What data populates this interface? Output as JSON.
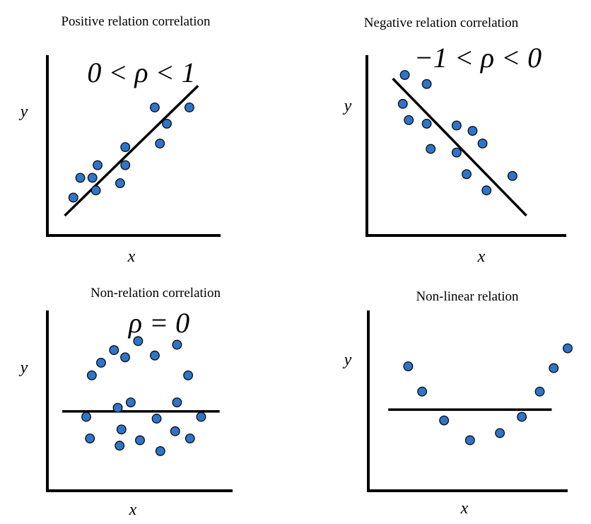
{
  "chart_data": [
    {
      "type": "scatter",
      "title": "Positive relation correlation",
      "annotation": "0 < ρ < 1",
      "xlabel": "x",
      "ylabel": "y",
      "xlim": [
        0,
        10
      ],
      "ylim": [
        0,
        10
      ],
      "trend_line": {
        "x": [
          1,
          8.7
        ],
        "y": [
          1.1,
          8.3
        ]
      },
      "points": [
        {
          "x": 1.5,
          "y": 2.1
        },
        {
          "x": 1.9,
          "y": 3.2
        },
        {
          "x": 2.6,
          "y": 3.2
        },
        {
          "x": 2.8,
          "y": 2.5
        },
        {
          "x": 2.9,
          "y": 3.9
        },
        {
          "x": 4.2,
          "y": 2.9
        },
        {
          "x": 4.5,
          "y": 3.9
        },
        {
          "x": 4.5,
          "y": 4.9
        },
        {
          "x": 6.2,
          "y": 7.1
        },
        {
          "x": 6.5,
          "y": 5.1
        },
        {
          "x": 6.9,
          "y": 6.2
        },
        {
          "x": 8.2,
          "y": 7.1
        }
      ]
    },
    {
      "type": "scatter",
      "title": "Negative relation correlation",
      "annotation": "−1 < ρ < 0",
      "xlabel": "x",
      "ylabel": "y",
      "xlim": [
        0,
        10
      ],
      "ylim": [
        0,
        10
      ],
      "trend_line": {
        "x": [
          1.3,
          8
        ],
        "y": [
          8.7,
          1.1
        ]
      },
      "points": [
        {
          "x": 1.9,
          "y": 8.9
        },
        {
          "x": 1.8,
          "y": 7.3
        },
        {
          "x": 2.1,
          "y": 6.4
        },
        {
          "x": 3,
          "y": 8.4
        },
        {
          "x": 3,
          "y": 6.2
        },
        {
          "x": 3.2,
          "y": 4.8
        },
        {
          "x": 4.5,
          "y": 6.1
        },
        {
          "x": 4.5,
          "y": 4.6
        },
        {
          "x": 5,
          "y": 3.4
        },
        {
          "x": 5.3,
          "y": 5.8
        },
        {
          "x": 5.8,
          "y": 5.1
        },
        {
          "x": 6,
          "y": 2.5
        },
        {
          "x": 7.3,
          "y": 3.3
        }
      ]
    },
    {
      "type": "scatter",
      "title": "Non-relation correlation",
      "annotation": "ρ = 0",
      "xlabel": "x",
      "ylabel": "y",
      "xlim": [
        0,
        10
      ],
      "ylim": [
        0,
        10
      ],
      "trend_line": {
        "x": [
          0.8,
          9.3
        ],
        "y": [
          4.4,
          4.4
        ]
      },
      "points": [
        {
          "x": 2.9,
          "y": 7.1
        },
        {
          "x": 3.6,
          "y": 7.8
        },
        {
          "x": 4.2,
          "y": 7.4
        },
        {
          "x": 4.9,
          "y": 8.3
        },
        {
          "x": 5.8,
          "y": 7.5
        },
        {
          "x": 7,
          "y": 8.1
        },
        {
          "x": 2.4,
          "y": 6.4
        },
        {
          "x": 7.6,
          "y": 6.4
        },
        {
          "x": 4.5,
          "y": 4.9
        },
        {
          "x": 3.8,
          "y": 4.6
        },
        {
          "x": 7,
          "y": 4.9
        },
        {
          "x": 2.1,
          "y": 4.1
        },
        {
          "x": 5.9,
          "y": 4
        },
        {
          "x": 8.3,
          "y": 4.1
        },
        {
          "x": 2.3,
          "y": 2.9
        },
        {
          "x": 4,
          "y": 3.4
        },
        {
          "x": 6.9,
          "y": 3.3
        },
        {
          "x": 7.7,
          "y": 2.9
        },
        {
          "x": 3.9,
          "y": 2.5
        },
        {
          "x": 5,
          "y": 2.8
        },
        {
          "x": 6.1,
          "y": 2.2
        }
      ]
    },
    {
      "type": "scatter",
      "title": "Non-linear relation",
      "xlabel": "x",
      "ylabel": "y",
      "xlim": [
        0,
        10
      ],
      "ylim": [
        0,
        10
      ],
      "trend_line": {
        "x": [
          1,
          9.2
        ],
        "y": [
          4.5,
          4.5
        ]
      },
      "points": [
        {
          "x": 2,
          "y": 6.9
        },
        {
          "x": 2.7,
          "y": 5.5
        },
        {
          "x": 3.8,
          "y": 3.9
        },
        {
          "x": 5.1,
          "y": 2.8
        },
        {
          "x": 6.6,
          "y": 3.2
        },
        {
          "x": 7.7,
          "y": 4.1
        },
        {
          "x": 8.6,
          "y": 5.5
        },
        {
          "x": 9.3,
          "y": 6.8
        },
        {
          "x": 10,
          "y": 7.9
        }
      ]
    }
  ]
}
